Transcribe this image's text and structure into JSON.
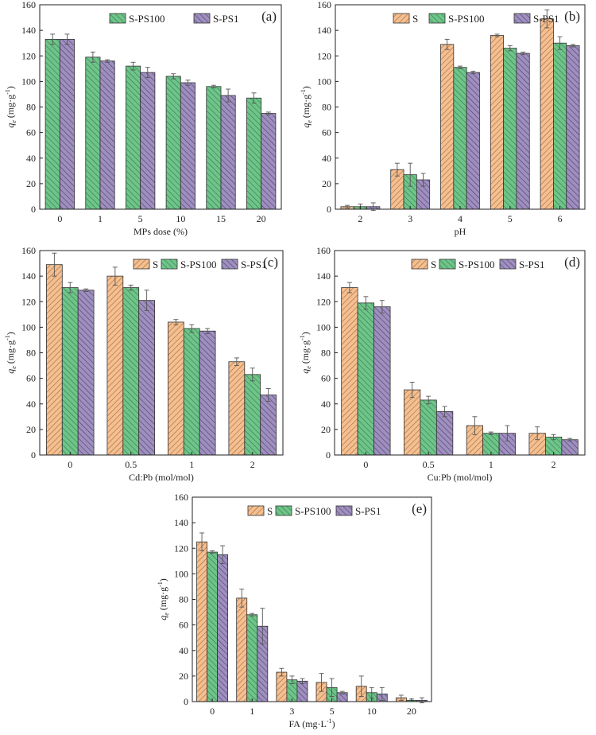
{
  "colors": {
    "S": "#f5bf90",
    "S-PS100": "#6fc48a",
    "S-PS1": "#9f8fbf",
    "axis": "#222222",
    "error": "#555555"
  },
  "chart_data": [
    {
      "type": "bar",
      "panel_label": "(a)",
      "xlabel": "MPs dose (%)",
      "ylabel_main": "q",
      "ylabel_sub": "e",
      "ylabel_unit": "(mg·g",
      "ylabel_sup": "-1",
      "ylabel_close": ")",
      "ylim": [
        0,
        160
      ],
      "yticks": [
        0,
        20,
        40,
        60,
        80,
        100,
        120,
        140,
        160
      ],
      "categories": [
        "0",
        "1",
        "5",
        "10",
        "15",
        "20"
      ],
      "series": [
        {
          "name": "S-PS100",
          "values": [
            133,
            119,
            112,
            104,
            96,
            87
          ],
          "errors": [
            4,
            4,
            3,
            2,
            1,
            4
          ]
        },
        {
          "name": "S-PS1",
          "values": [
            133,
            116,
            107,
            99,
            89,
            75
          ],
          "errors": [
            4,
            1,
            4,
            2,
            5,
            1
          ]
        }
      ]
    },
    {
      "type": "bar",
      "panel_label": "(b)",
      "xlabel": "pH",
      "ylabel_main": "q",
      "ylabel_sub": "e",
      "ylabel_unit": "(mg·g",
      "ylabel_sup": "-1",
      "ylabel_close": ")",
      "ylim": [
        0,
        160
      ],
      "yticks": [
        0,
        20,
        40,
        60,
        80,
        100,
        120,
        140,
        160
      ],
      "categories": [
        "2",
        "3",
        "4",
        "5",
        "6"
      ],
      "series": [
        {
          "name": "S",
          "values": [
            2,
            31,
            129,
            136,
            149
          ],
          "errors": [
            1,
            5,
            4,
            1,
            7
          ]
        },
        {
          "name": "S-PS100",
          "values": [
            2,
            27,
            111,
            126,
            130
          ],
          "errors": [
            2,
            9,
            1,
            2,
            5
          ]
        },
        {
          "name": "S-PS1",
          "values": [
            2,
            23,
            107,
            122,
            128
          ],
          "errors": [
            3,
            5,
            1,
            1,
            1
          ]
        }
      ]
    },
    {
      "type": "bar",
      "panel_label": "(c)",
      "xlabel": "Cd:Pb (mol/mol)",
      "ylabel_main": "q",
      "ylabel_sub": "e",
      "ylabel_unit": "(mg·g",
      "ylabel_sup": "-1",
      "ylabel_close": ")",
      "ylim": [
        0,
        160
      ],
      "yticks": [
        0,
        20,
        40,
        60,
        80,
        100,
        120,
        140,
        160
      ],
      "categories": [
        "0",
        "0.5",
        "1",
        "2"
      ],
      "series": [
        {
          "name": "S",
          "values": [
            149,
            140,
            104,
            73
          ],
          "errors": [
            9,
            7,
            2,
            3
          ]
        },
        {
          "name": "S-PS100",
          "values": [
            131,
            131,
            99,
            63
          ],
          "errors": [
            4,
            2,
            3,
            5
          ]
        },
        {
          "name": "S-PS1",
          "values": [
            129,
            121,
            97,
            47
          ],
          "errors": [
            1,
            8,
            2,
            5
          ]
        }
      ]
    },
    {
      "type": "bar",
      "panel_label": "(d)",
      "xlabel": "Cu:Pb (mol/mol)",
      "ylabel_main": "q",
      "ylabel_sub": "e",
      "ylabel_unit": "(mg·g",
      "ylabel_sup": "-1",
      "ylabel_close": ")",
      "ylim": [
        0,
        160
      ],
      "yticks": [
        0,
        20,
        40,
        60,
        80,
        100,
        120,
        140,
        160
      ],
      "categories": [
        "0",
        "0.5",
        "1",
        "2"
      ],
      "series": [
        {
          "name": "S",
          "values": [
            131,
            51,
            23,
            17
          ],
          "errors": [
            4,
            6,
            7,
            5
          ]
        },
        {
          "name": "S-PS100",
          "values": [
            119,
            43,
            17,
            14
          ],
          "errors": [
            5,
            3,
            1,
            2
          ]
        },
        {
          "name": "S-PS1",
          "values": [
            116,
            34,
            17,
            12
          ],
          "errors": [
            5,
            4,
            6,
            1
          ]
        }
      ]
    },
    {
      "type": "bar",
      "panel_label": "(e)",
      "xlabel_main": "FA (mg·L",
      "xlabel_sup": "-1",
      "xlabel_close": ")",
      "ylabel_main": "q",
      "ylabel_sub": "e",
      "ylabel_unit": "(mg·g",
      "ylabel_sup": "-1",
      "ylabel_close": ")",
      "ylim": [
        0,
        160
      ],
      "yticks": [
        0,
        20,
        40,
        60,
        80,
        100,
        120,
        140,
        160
      ],
      "categories": [
        "0",
        "1",
        "3",
        "5",
        "10",
        "20"
      ],
      "series": [
        {
          "name": "S",
          "values": [
            125,
            81,
            23,
            15,
            12,
            3
          ],
          "errors": [
            7,
            7,
            3,
            7,
            8,
            2
          ]
        },
        {
          "name": "S-PS100",
          "values": [
            117,
            68,
            17,
            11,
            7,
            1
          ],
          "errors": [
            1,
            1,
            3,
            7,
            4,
            1
          ]
        },
        {
          "name": "S-PS1",
          "values": [
            115,
            59,
            16,
            7,
            6,
            1
          ],
          "errors": [
            7,
            14,
            2,
            1,
            5,
            2
          ]
        }
      ]
    }
  ]
}
